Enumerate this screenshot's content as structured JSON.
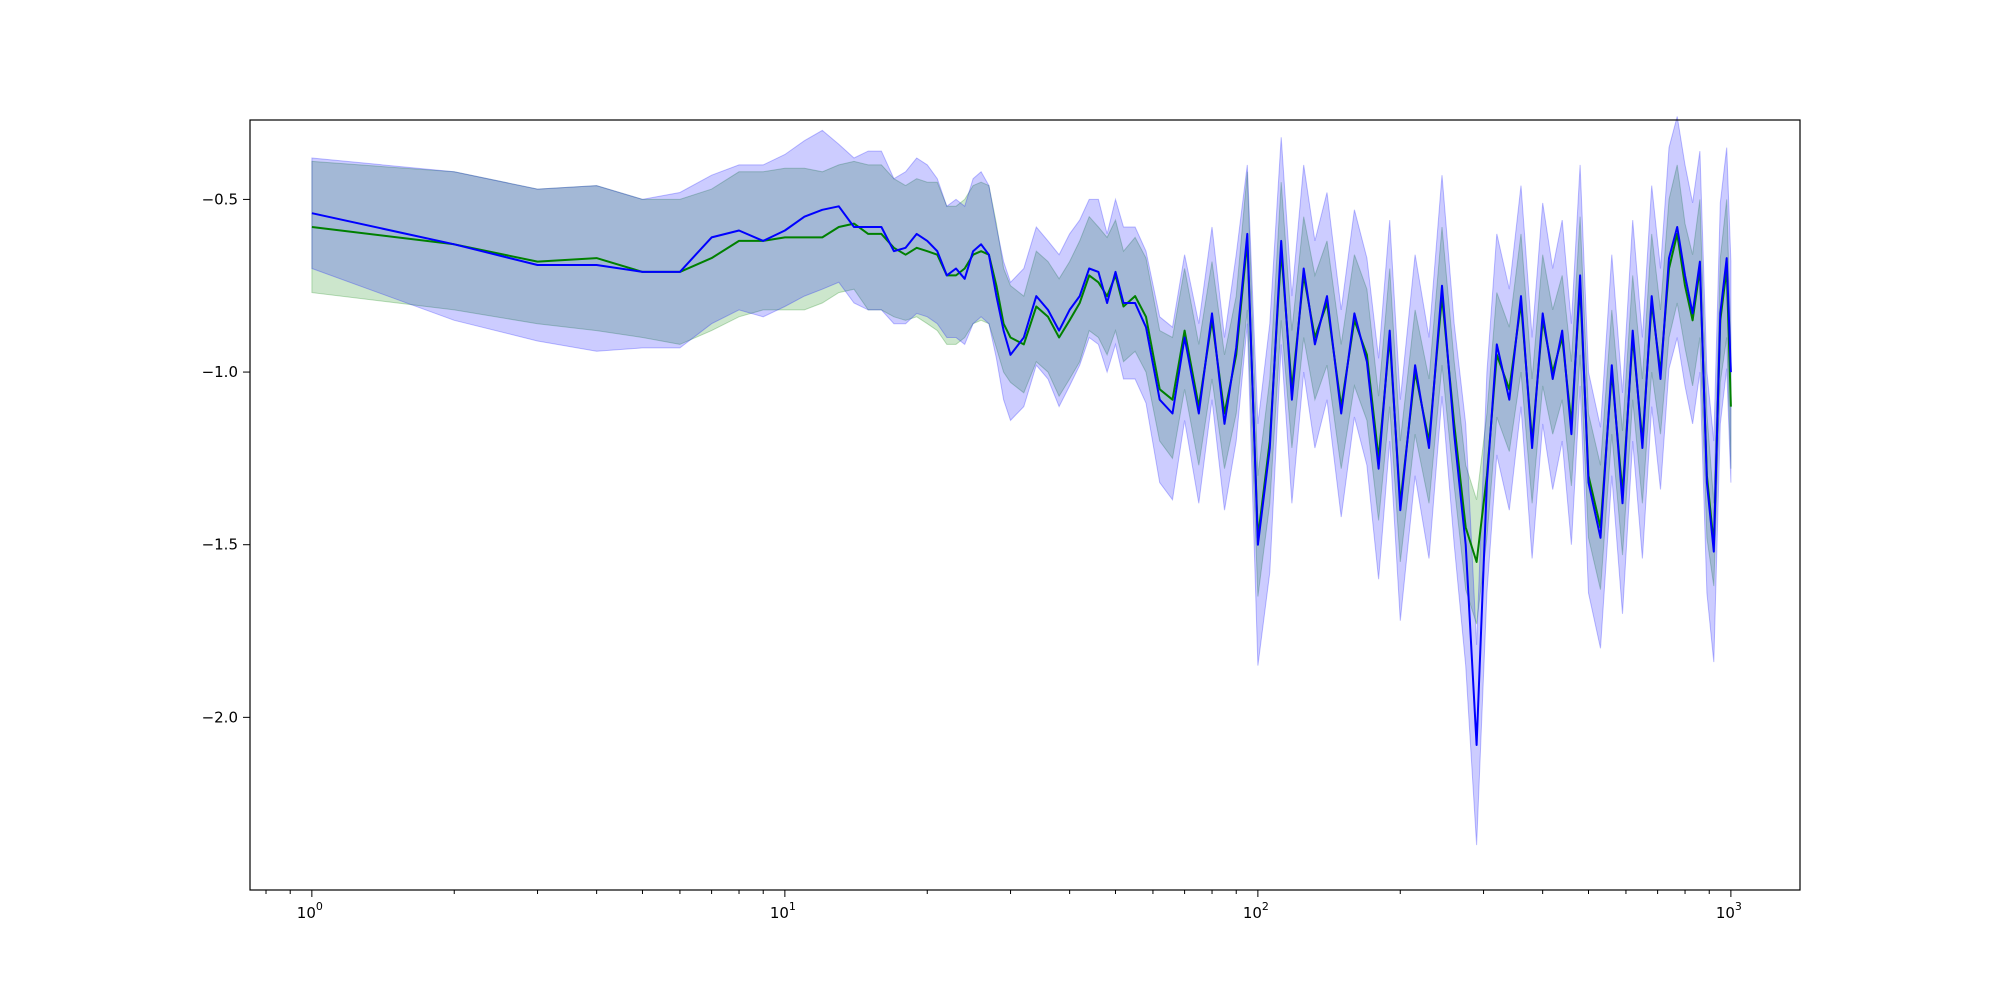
{
  "chart_data": {
    "type": "line",
    "title": "",
    "xlabel": "",
    "ylabel": "",
    "xscale": "log",
    "xlim": [
      0.74,
      1400
    ],
    "ylim": [
      -2.5,
      -0.27
    ],
    "grid": false,
    "legend": "none",
    "x_ticks": [
      {
        "value": 1,
        "base": "10",
        "exp": "0"
      },
      {
        "value": 10,
        "base": "10",
        "exp": "1"
      },
      {
        "value": 100,
        "base": "10",
        "exp": "2"
      },
      {
        "value": 1000,
        "base": "10",
        "exp": "3"
      }
    ],
    "y_ticks": [
      {
        "value": -0.5,
        "label": "−0.5"
      },
      {
        "value": -1.0,
        "label": "−1.0"
      },
      {
        "value": -1.5,
        "label": "−1.5"
      },
      {
        "value": -2.0,
        "label": "−2.0"
      }
    ],
    "series": [
      {
        "color": "#008000",
        "band_color": "#008000",
        "band_alpha": 0.2,
        "x": [
          1,
          2,
          3,
          4,
          5,
          6,
          7,
          8,
          9,
          10,
          11,
          12,
          13,
          14,
          15,
          16,
          17,
          18,
          19,
          20,
          21,
          22,
          23,
          24,
          25,
          26,
          27,
          28,
          29,
          30,
          32,
          34,
          36,
          38,
          40,
          42,
          44,
          46,
          48,
          50,
          52,
          55,
          58,
          62,
          66,
          70,
          75,
          80,
          85,
          90,
          95,
          100,
          106,
          112,
          118,
          125,
          132,
          140,
          150,
          160,
          170,
          180,
          190,
          200,
          215,
          230,
          245,
          260,
          275,
          290,
          305,
          320,
          340,
          360,
          380,
          400,
          420,
          440,
          460,
          480,
          500,
          530,
          560,
          590,
          620,
          650,
          680,
          710,
          740,
          770,
          800,
          830,
          860,
          890,
          920,
          950,
          980,
          1000
        ],
        "y": [
          -0.58,
          -0.63,
          -0.68,
          -0.67,
          -0.71,
          -0.71,
          -0.67,
          -0.62,
          -0.62,
          -0.61,
          -0.61,
          -0.61,
          -0.58,
          -0.57,
          -0.6,
          -0.6,
          -0.64,
          -0.66,
          -0.64,
          -0.65,
          -0.66,
          -0.72,
          -0.72,
          -0.7,
          -0.66,
          -0.65,
          -0.66,
          -0.75,
          -0.86,
          -0.9,
          -0.92,
          -0.81,
          -0.84,
          -0.9,
          -0.85,
          -0.8,
          -0.72,
          -0.74,
          -0.78,
          -0.72,
          -0.81,
          -0.78,
          -0.84,
          -1.05,
          -1.08,
          -0.88,
          -1.1,
          -0.85,
          -1.12,
          -0.95,
          -0.62,
          -1.48,
          -1.2,
          -0.65,
          -1.05,
          -0.72,
          -0.9,
          -0.8,
          -1.1,
          -0.85,
          -0.95,
          -1.25,
          -0.9,
          -1.38,
          -1.0,
          -1.2,
          -0.78,
          -1.15,
          -1.45,
          -1.55,
          -1.3,
          -0.95,
          -1.05,
          -0.8,
          -1.2,
          -0.85,
          -1.0,
          -0.9,
          -1.15,
          -0.75,
          -1.3,
          -1.45,
          -1.0,
          -1.35,
          -0.9,
          -1.2,
          -0.8,
          -1.0,
          -0.7,
          -0.6,
          -0.75,
          -0.85,
          -0.7,
          -1.3,
          -1.5,
          -0.85,
          -0.7,
          -1.1
        ],
        "lower": [
          -0.77,
          -0.82,
          -0.86,
          -0.88,
          -0.9,
          -0.92,
          -0.88,
          -0.84,
          -0.82,
          -0.82,
          -0.82,
          -0.8,
          -0.77,
          -0.76,
          -0.82,
          -0.82,
          -0.84,
          -0.85,
          -0.84,
          -0.86,
          -0.88,
          -0.92,
          -0.92,
          -0.9,
          -0.86,
          -0.85,
          -0.86,
          -0.93,
          -1.0,
          -1.03,
          -1.06,
          -0.97,
          -1.0,
          -1.07,
          -1.02,
          -0.97,
          -0.88,
          -0.9,
          -0.95,
          -0.88,
          -0.97,
          -0.94,
          -1.0,
          -1.2,
          -1.25,
          -1.05,
          -1.27,
          -1.02,
          -1.28,
          -1.12,
          -0.82,
          -1.65,
          -1.38,
          -0.85,
          -1.22,
          -0.9,
          -1.08,
          -0.98,
          -1.28,
          -1.04,
          -1.14,
          -1.43,
          -1.1,
          -1.55,
          -1.18,
          -1.38,
          -0.98,
          -1.33,
          -1.63,
          -1.73,
          -1.48,
          -1.13,
          -1.23,
          -1.0,
          -1.38,
          -1.04,
          -1.18,
          -1.08,
          -1.33,
          -0.95,
          -1.48,
          -1.63,
          -1.18,
          -1.53,
          -1.08,
          -1.38,
          -1.0,
          -1.18,
          -0.9,
          -0.8,
          -0.93,
          -1.04,
          -0.9,
          -1.48,
          -1.62,
          -1.03,
          -0.9,
          -1.28
        ],
        "upper": [
          -0.39,
          -0.42,
          -0.47,
          -0.46,
          -0.5,
          -0.5,
          -0.47,
          -0.42,
          -0.42,
          -0.41,
          -0.41,
          -0.42,
          -0.4,
          -0.39,
          -0.4,
          -0.4,
          -0.44,
          -0.46,
          -0.44,
          -0.45,
          -0.45,
          -0.52,
          -0.52,
          -0.5,
          -0.46,
          -0.45,
          -0.46,
          -0.57,
          -0.7,
          -0.75,
          -0.78,
          -0.65,
          -0.68,
          -0.73,
          -0.68,
          -0.62,
          -0.55,
          -0.58,
          -0.61,
          -0.56,
          -0.65,
          -0.61,
          -0.67,
          -0.88,
          -0.9,
          -0.7,
          -0.92,
          -0.68,
          -0.95,
          -0.78,
          -0.42,
          -1.3,
          -1.02,
          -0.45,
          -0.88,
          -0.55,
          -0.72,
          -0.62,
          -0.92,
          -0.66,
          -0.76,
          -1.07,
          -0.7,
          -1.2,
          -0.82,
          -1.02,
          -0.58,
          -0.97,
          -1.27,
          -1.37,
          -1.12,
          -0.77,
          -0.87,
          -0.6,
          -1.02,
          -0.66,
          -0.82,
          -0.72,
          -0.97,
          -0.55,
          -1.12,
          -1.27,
          -0.82,
          -1.17,
          -0.72,
          -1.02,
          -0.6,
          -0.82,
          -0.5,
          -0.4,
          -0.57,
          -0.66,
          -0.5,
          -1.12,
          -1.38,
          -0.67,
          -0.5,
          -0.92
        ]
      },
      {
        "color": "#0000ff",
        "band_color": "#0000ff",
        "band_alpha": 0.2,
        "x": [
          1,
          2,
          3,
          4,
          5,
          6,
          7,
          8,
          9,
          10,
          11,
          12,
          13,
          14,
          15,
          16,
          17,
          18,
          19,
          20,
          21,
          22,
          23,
          24,
          25,
          26,
          27,
          28,
          29,
          30,
          32,
          34,
          36,
          38,
          40,
          42,
          44,
          46,
          48,
          50,
          52,
          55,
          58,
          62,
          66,
          70,
          75,
          80,
          85,
          90,
          95,
          100,
          106,
          112,
          118,
          125,
          132,
          140,
          150,
          160,
          170,
          180,
          190,
          200,
          215,
          230,
          245,
          260,
          275,
          290,
          305,
          320,
          340,
          360,
          380,
          400,
          420,
          440,
          460,
          480,
          500,
          530,
          560,
          590,
          620,
          650,
          680,
          710,
          740,
          770,
          800,
          830,
          860,
          890,
          920,
          950,
          980,
          1000
        ],
        "y": [
          -0.54,
          -0.63,
          -0.69,
          -0.69,
          -0.71,
          -0.71,
          -0.61,
          -0.59,
          -0.62,
          -0.59,
          -0.55,
          -0.53,
          -0.52,
          -0.58,
          -0.58,
          -0.58,
          -0.65,
          -0.64,
          -0.6,
          -0.62,
          -0.65,
          -0.72,
          -0.7,
          -0.73,
          -0.65,
          -0.63,
          -0.66,
          -0.78,
          -0.88,
          -0.95,
          -0.9,
          -0.78,
          -0.82,
          -0.88,
          -0.82,
          -0.78,
          -0.7,
          -0.71,
          -0.8,
          -0.71,
          -0.8,
          -0.8,
          -0.87,
          -1.08,
          -1.12,
          -0.9,
          -1.12,
          -0.83,
          -1.15,
          -0.93,
          -0.6,
          -1.5,
          -1.22,
          -0.62,
          -1.08,
          -0.7,
          -0.92,
          -0.78,
          -1.12,
          -0.83,
          -0.97,
          -1.28,
          -0.88,
          -1.4,
          -0.98,
          -1.22,
          -0.75,
          -1.18,
          -1.5,
          -2.08,
          -1.32,
          -0.92,
          -1.08,
          -0.78,
          -1.22,
          -0.83,
          -1.02,
          -0.88,
          -1.18,
          -0.72,
          -1.32,
          -1.48,
          -0.98,
          -1.38,
          -0.88,
          -1.22,
          -0.78,
          -1.02,
          -0.67,
          -0.58,
          -0.72,
          -0.83,
          -0.68,
          -1.32,
          -1.52,
          -0.83,
          -0.67,
          -1.0
        ],
        "lower": [
          -0.7,
          -0.85,
          -0.91,
          -0.94,
          -0.93,
          -0.93,
          -0.86,
          -0.82,
          -0.84,
          -0.81,
          -0.78,
          -0.76,
          -0.74,
          -0.8,
          -0.82,
          -0.82,
          -0.86,
          -0.86,
          -0.83,
          -0.84,
          -0.86,
          -0.9,
          -0.9,
          -0.92,
          -0.86,
          -0.84,
          -0.86,
          -0.96,
          -1.08,
          -1.14,
          -1.1,
          -0.98,
          -1.02,
          -1.1,
          -1.04,
          -0.98,
          -0.9,
          -0.92,
          -1.0,
          -0.92,
          -1.02,
          -1.02,
          -1.09,
          -1.32,
          -1.37,
          -1.14,
          -1.38,
          -1.08,
          -1.4,
          -1.2,
          -0.86,
          -1.85,
          -1.58,
          -0.92,
          -1.38,
          -1.0,
          -1.22,
          -1.08,
          -1.42,
          -1.13,
          -1.27,
          -1.6,
          -1.2,
          -1.72,
          -1.3,
          -1.54,
          -1.07,
          -1.5,
          -1.85,
          -2.37,
          -1.64,
          -1.24,
          -1.4,
          -1.1,
          -1.54,
          -1.15,
          -1.34,
          -1.2,
          -1.5,
          -1.04,
          -1.64,
          -1.8,
          -1.3,
          -1.7,
          -1.2,
          -1.54,
          -1.1,
          -1.34,
          -0.99,
          -0.9,
          -1.04,
          -1.15,
          -1.0,
          -1.64,
          -1.84,
          -1.15,
          -0.99,
          -1.32
        ],
        "upper": [
          -0.38,
          -0.42,
          -0.47,
          -0.46,
          -0.5,
          -0.48,
          -0.43,
          -0.4,
          -0.4,
          -0.37,
          -0.33,
          -0.3,
          -0.34,
          -0.38,
          -0.36,
          -0.36,
          -0.44,
          -0.42,
          -0.38,
          -0.4,
          -0.44,
          -0.52,
          -0.5,
          -0.52,
          -0.44,
          -0.42,
          -0.46,
          -0.58,
          -0.68,
          -0.74,
          -0.7,
          -0.58,
          -0.62,
          -0.66,
          -0.6,
          -0.56,
          -0.5,
          -0.5,
          -0.6,
          -0.5,
          -0.58,
          -0.58,
          -0.65,
          -0.84,
          -0.87,
          -0.66,
          -0.86,
          -0.58,
          -0.9,
          -0.66,
          -0.4,
          -1.15,
          -0.86,
          -0.32,
          -0.78,
          -0.4,
          -0.62,
          -0.48,
          -0.82,
          -0.53,
          -0.67,
          -0.96,
          -0.56,
          -1.08,
          -0.66,
          -0.9,
          -0.43,
          -0.86,
          -1.15,
          -1.79,
          -1.0,
          -0.6,
          -0.76,
          -0.46,
          -0.9,
          -0.51,
          -0.7,
          -0.56,
          -0.86,
          -0.4,
          -1.0,
          -1.16,
          -0.66,
          -1.06,
          -0.56,
          -0.9,
          -0.46,
          -0.7,
          -0.35,
          -0.26,
          -0.4,
          -0.51,
          -0.36,
          -1.0,
          -1.2,
          -0.51,
          -0.35,
          -0.68
        ]
      }
    ]
  }
}
